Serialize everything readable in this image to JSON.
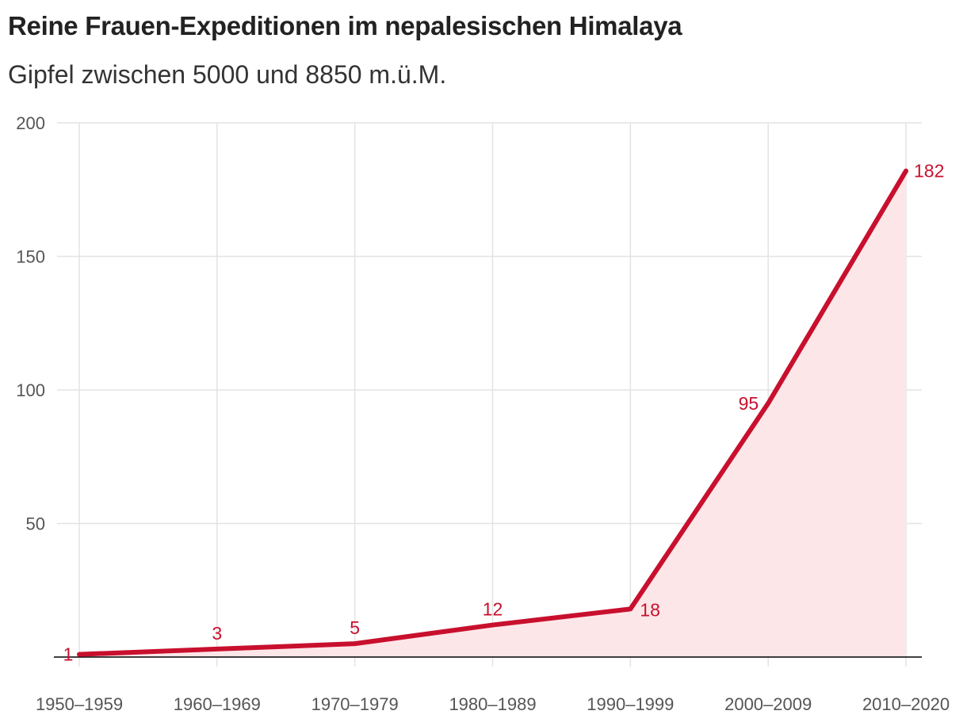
{
  "colors": {
    "line": "#c8102e",
    "area": "#fde6e8",
    "grid": "#e3e3e3",
    "baseline": "#000000"
  },
  "chart_data": {
    "type": "area",
    "title": "Reine Frauen-Expeditionen im nepalesischen Himalaya",
    "subtitle": "Gipfel zwischen 5000 und 8850 m.ü.M.",
    "categories": [
      "1950–1959",
      "1960–1969",
      "1970–1979",
      "1980–1989",
      "1990–1999",
      "2000–2009",
      "2010–2020"
    ],
    "values": [
      1,
      3,
      5,
      12,
      18,
      95,
      182
    ],
    "ylim": [
      0,
      200
    ],
    "yticks": [
      50,
      100,
      150,
      200
    ],
    "grid": true
  }
}
